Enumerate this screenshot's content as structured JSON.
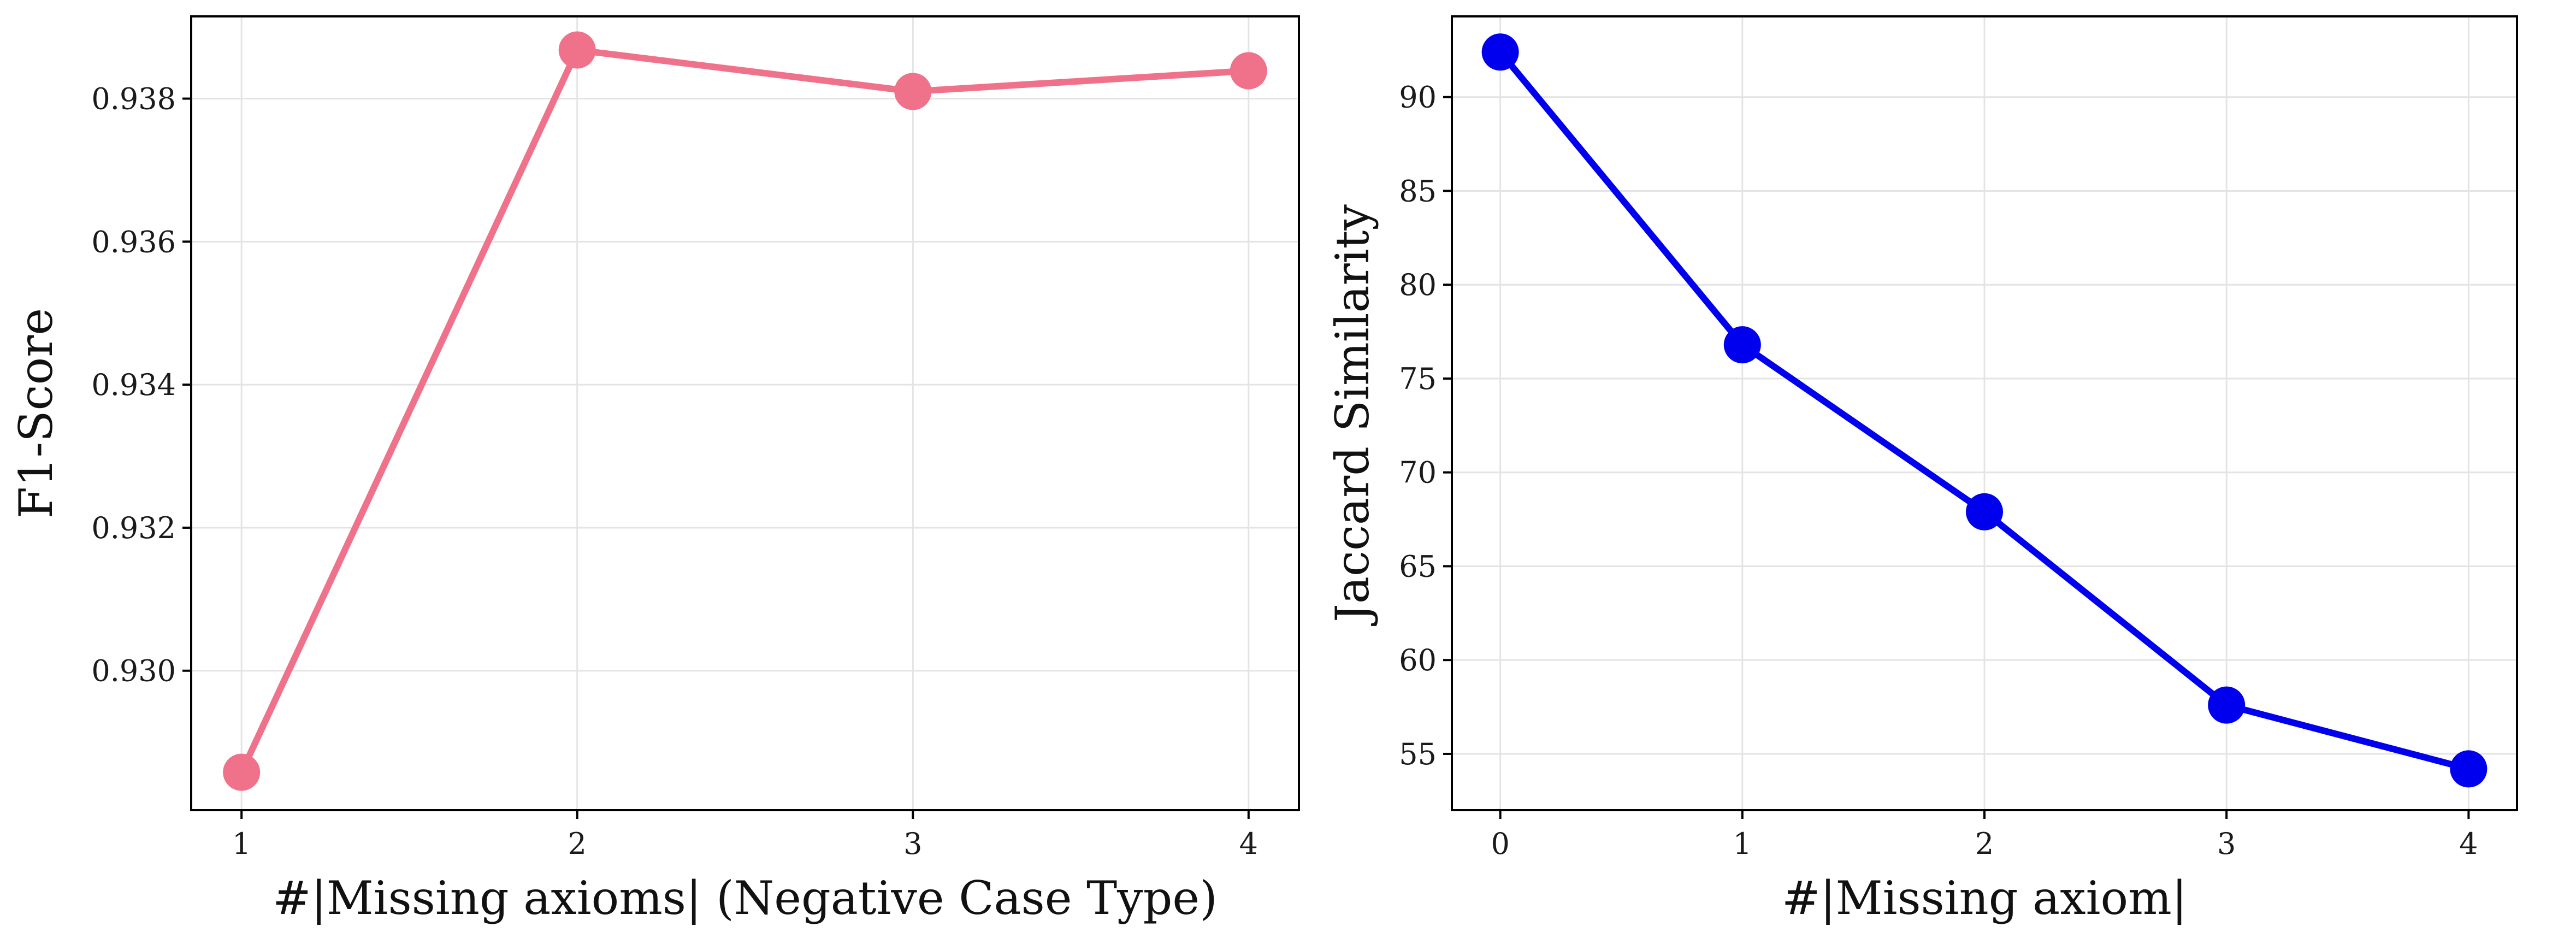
{
  "chart_data": [
    {
      "type": "line",
      "title": "",
      "xlabel": "#|Missing axioms| (Negative Case Type)",
      "ylabel": "F1-Score",
      "x": [
        1,
        2,
        3,
        4
      ],
      "series": [
        {
          "values": [
            0.92858,
            0.93868,
            0.9381,
            0.93839
          ]
        }
      ],
      "xlim": [
        0.85,
        4.15
      ],
      "ylim": [
        0.92805,
        0.93915
      ],
      "xticks": [
        1,
        2,
        3,
        4
      ],
      "yticks": [
        0.93,
        0.932,
        0.934,
        0.936,
        0.938
      ],
      "ytick_labels": [
        "0.930",
        "0.932",
        "0.934",
        "0.936",
        "0.938"
      ],
      "grid": true,
      "legend": "none",
      "color": "#f0718a"
    },
    {
      "type": "line",
      "title": "",
      "xlabel": "#|Missing axiom|",
      "ylabel": "Jaccard Similarity",
      "x": [
        0,
        1,
        2,
        3,
        4
      ],
      "series": [
        {
          "values": [
            92.4,
            76.8,
            67.9,
            57.6,
            54.2
          ]
        }
      ],
      "xlim": [
        -0.2,
        4.2
      ],
      "ylim": [
        52.0,
        94.3
      ],
      "xticks": [
        0,
        1,
        2,
        3,
        4
      ],
      "yticks": [
        55,
        60,
        65,
        70,
        75,
        80,
        85,
        90
      ],
      "ytick_labels": [
        "55",
        "60",
        "65",
        "70",
        "75",
        "80",
        "85",
        "90"
      ],
      "grid": true,
      "legend": "none",
      "color": "#0000ee"
    }
  ]
}
